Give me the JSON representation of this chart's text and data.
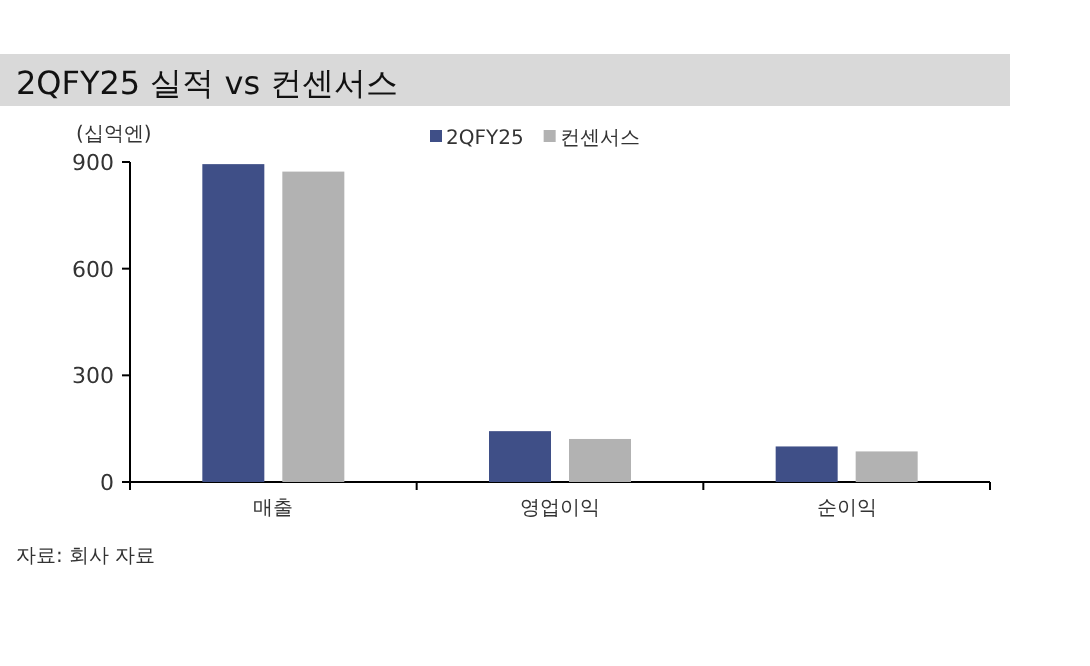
{
  "chart_data": {
    "type": "bar",
    "title": "2QFY25 실적 vs 컨센서스",
    "ylabel": "(십억엔)",
    "categories": [
      "매출",
      "영업이익",
      "순이익"
    ],
    "series": [
      {
        "name": "2QFY25",
        "color": "#3f4f87",
        "values": [
          894,
          143,
          100
        ]
      },
      {
        "name": "컨센서스",
        "color": "#b2b2b2",
        "values": [
          873,
          121,
          86
        ]
      }
    ],
    "ylim": [
      0,
      900
    ],
    "yticks": [
      0,
      300,
      600,
      900
    ],
    "grid": false,
    "legend": "top",
    "annotations": [
      "자료: 회사 자료"
    ]
  }
}
